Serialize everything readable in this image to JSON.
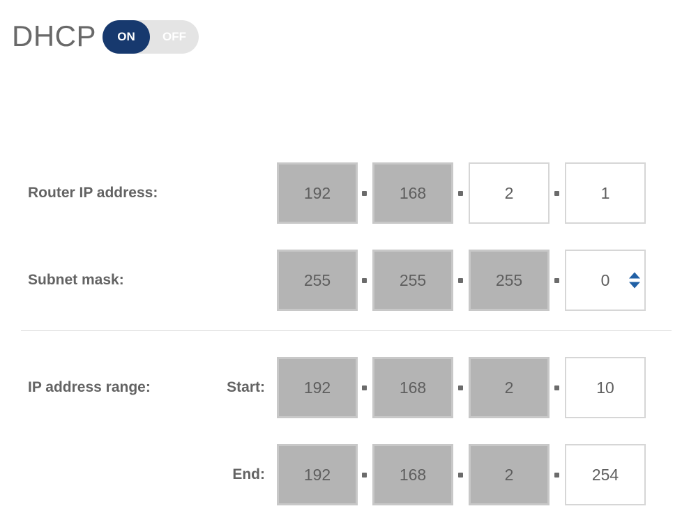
{
  "header": {
    "title": "DHCP",
    "toggle": {
      "on_label": "ON",
      "off_label": "OFF",
      "state": "ON"
    }
  },
  "ui": {
    "octet_separator": "."
  },
  "colors": {
    "accent_navy": "#17396e",
    "toggle_track": "#e4e4e4",
    "locked_box_bg": "#b4b4b4",
    "locked_box_border": "#c8c8c8",
    "editable_box_border": "#d6d6d6",
    "label_text": "#636363",
    "value_text": "#5e5e5e",
    "spinner_blue": "#2160a5",
    "divider": "#dadada"
  },
  "rows": [
    {
      "label": "Router IP address:",
      "sublabel": "",
      "octets": [
        {
          "value": "192",
          "locked": true
        },
        {
          "value": "168",
          "locked": true
        },
        {
          "value": "2",
          "locked": false
        },
        {
          "value": "1",
          "locked": false
        }
      ],
      "has_spinner": false
    },
    {
      "label": "Subnet mask:",
      "sublabel": "",
      "octets": [
        {
          "value": "255",
          "locked": true
        },
        {
          "value": "255",
          "locked": true
        },
        {
          "value": "255",
          "locked": true
        },
        {
          "value": "0",
          "locked": false
        }
      ],
      "has_spinner": true
    },
    {
      "label": "IP address range:",
      "sublabel": "Start:",
      "octets": [
        {
          "value": "192",
          "locked": true
        },
        {
          "value": "168",
          "locked": true
        },
        {
          "value": "2",
          "locked": true
        },
        {
          "value": "10",
          "locked": false
        }
      ],
      "has_spinner": false
    },
    {
      "label": "",
      "sublabel": "End:",
      "octets": [
        {
          "value": "192",
          "locked": true
        },
        {
          "value": "168",
          "locked": true
        },
        {
          "value": "2",
          "locked": true
        },
        {
          "value": "254",
          "locked": false
        }
      ],
      "has_spinner": false
    }
  ]
}
